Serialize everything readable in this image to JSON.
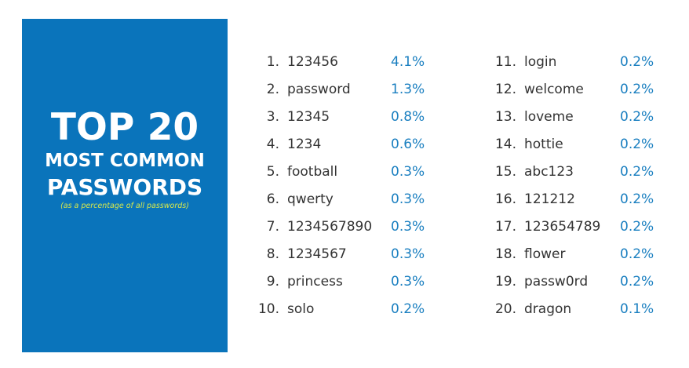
{
  "panel": {
    "title_line1": "TOP 20",
    "title_line2": "MOST COMMON",
    "title_line3": "PASSWORDS",
    "note": "(as a percentage of all passwords)",
    "bg_color": "#0a74bb",
    "note_color": "#d9e94a"
  },
  "passwords": [
    {
      "rank": "1.",
      "password": "123456",
      "percent": "4.1%"
    },
    {
      "rank": "2.",
      "password": "password",
      "percent": "1.3%"
    },
    {
      "rank": "3.",
      "password": "12345",
      "percent": "0.8%"
    },
    {
      "rank": "4.",
      "password": "1234",
      "percent": "0.6%"
    },
    {
      "rank": "5.",
      "password": "football",
      "percent": "0.3%"
    },
    {
      "rank": "6.",
      "password": "qwerty",
      "percent": "0.3%"
    },
    {
      "rank": "7.",
      "password": "1234567890",
      "percent": "0.3%"
    },
    {
      "rank": "8.",
      "password": "1234567",
      "percent": "0.3%"
    },
    {
      "rank": "9.",
      "password": "princess",
      "percent": "0.3%"
    },
    {
      "rank": "10.",
      "password": "solo",
      "percent": "0.2%"
    },
    {
      "rank": "11.",
      "password": "login",
      "percent": "0.2%"
    },
    {
      "rank": "12.",
      "password": "welcome",
      "percent": "0.2%"
    },
    {
      "rank": "13.",
      "password": "loveme",
      "percent": "0.2%"
    },
    {
      "rank": "14.",
      "password": "hottie",
      "percent": "0.2%"
    },
    {
      "rank": "15.",
      "password": "abc123",
      "percent": "0.2%"
    },
    {
      "rank": "16.",
      "password": "121212",
      "percent": "0.2%"
    },
    {
      "rank": "17.",
      "password": "123654789",
      "percent": "0.2%"
    },
    {
      "rank": "18.",
      "password": "flower",
      "percent": "0.2%"
    },
    {
      "rank": "19.",
      "password": "passw0rd",
      "percent": "0.2%"
    },
    {
      "rank": "20.",
      "password": "dragon",
      "percent": "0.1%"
    }
  ],
  "colors": {
    "percent": "#1a7fc0",
    "text": "#333333"
  }
}
